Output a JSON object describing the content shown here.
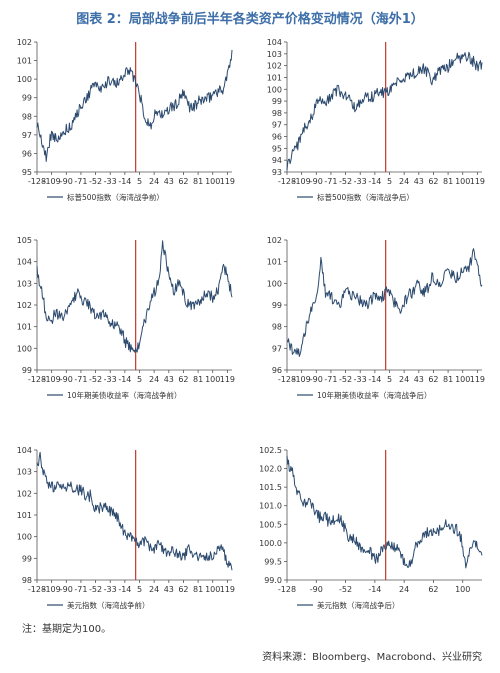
{
  "title": "图表 2：局部战争前后半年各类资产价格变动情况（海外1）",
  "note": "注：基期定为100。",
  "source": "资料来源：Bloomberg、Macrobond、兴业研究",
  "colors": {
    "series": "#2c4a6e",
    "event_line": "#c0392b",
    "title": "#3d6ea8"
  },
  "chart_data": [
    {
      "type": "line",
      "series": [
        {
          "name": "标普500指数（海湾战争前）"
        }
      ],
      "x_ticks": [
        "-128",
        "-109",
        "-90",
        "-71",
        "-52",
        "-33",
        "-14",
        "5",
        "24",
        "43",
        "62",
        "81",
        "100",
        "119"
      ],
      "x_range": [
        -128,
        125
      ],
      "ylim": [
        95,
        102
      ],
      "y_ticks": [
        95,
        96,
        97,
        98,
        99,
        100,
        101,
        102
      ],
      "event_x": 0,
      "anchors": [
        [
          -128,
          97.6
        ],
        [
          -122,
          96.8
        ],
        [
          -116,
          95.7
        ],
        [
          -110,
          96.9
        ],
        [
          -100,
          96.9
        ],
        [
          -90,
          97.2
        ],
        [
          -80,
          97.7
        ],
        [
          -70,
          98.6
        ],
        [
          -60,
          99.3
        ],
        [
          -50,
          99.6
        ],
        [
          -40,
          99.7
        ],
        [
          -30,
          99.9
        ],
        [
          -20,
          99.8
        ],
        [
          -12,
          100.5
        ],
        [
          -6,
          100.4
        ],
        [
          0,
          99.8
        ],
        [
          6,
          98.9
        ],
        [
          12,
          97.9
        ],
        [
          20,
          97.6
        ],
        [
          30,
          98.3
        ],
        [
          40,
          98.1
        ],
        [
          50,
          98.6
        ],
        [
          60,
          99.1
        ],
        [
          70,
          98.6
        ],
        [
          80,
          98.6
        ],
        [
          90,
          99.0
        ],
        [
          100,
          99.1
        ],
        [
          108,
          99.4
        ],
        [
          114,
          99.6
        ],
        [
          120,
          100.3
        ],
        [
          125,
          101.2
        ]
      ]
    },
    {
      "type": "line",
      "series": [
        {
          "name": "标普500指数（海湾战争后）"
        }
      ],
      "x_ticks": [
        "-128",
        "-109",
        "-90",
        "-71",
        "-52",
        "-33",
        "-14",
        "5",
        "24",
        "43",
        "62",
        "81",
        "100",
        "119"
      ],
      "x_range": [
        -128,
        125
      ],
      "ylim": [
        93,
        104
      ],
      "y_ticks": [
        93,
        94,
        95,
        96,
        97,
        98,
        99,
        100,
        101,
        102,
        103,
        104
      ],
      "event_x": 0,
      "anchors": [
        [
          -128,
          93.3
        ],
        [
          -120,
          94.6
        ],
        [
          -110,
          95.9
        ],
        [
          -100,
          97.3
        ],
        [
          -90,
          98.6
        ],
        [
          -80,
          98.9
        ],
        [
          -70,
          99.4
        ],
        [
          -60,
          100.0
        ],
        [
          -50,
          99.3
        ],
        [
          -40,
          98.6
        ],
        [
          -30,
          98.9
        ],
        [
          -20,
          99.5
        ],
        [
          -10,
          99.6
        ],
        [
          0,
          99.8
        ],
        [
          10,
          100.3
        ],
        [
          20,
          100.6
        ],
        [
          30,
          101.1
        ],
        [
          40,
          101.6
        ],
        [
          50,
          101.6
        ],
        [
          60,
          100.9
        ],
        [
          70,
          101.3
        ],
        [
          80,
          102.0
        ],
        [
          90,
          102.5
        ],
        [
          100,
          103.0
        ],
        [
          108,
          102.6
        ],
        [
          115,
          102.3
        ],
        [
          125,
          102.0
        ]
      ]
    },
    {
      "type": "line",
      "series": [
        {
          "name": "10年期美债收益率（海湾战争前）"
        }
      ],
      "x_ticks": [
        "-128",
        "-109",
        "-90",
        "-71",
        "-52",
        "-33",
        "-14",
        "5",
        "24",
        "43",
        "62",
        "81",
        "100",
        "119"
      ],
      "x_range": [
        -128,
        125
      ],
      "ylim": [
        99,
        105
      ],
      "y_ticks": [
        99,
        100,
        101,
        102,
        103,
        104,
        105
      ],
      "event_x": 0,
      "anchors": [
        [
          -128,
          103.8
        ],
        [
          -122,
          102.6
        ],
        [
          -115,
          101.2
        ],
        [
          -105,
          101.6
        ],
        [
          -95,
          101.4
        ],
        [
          -85,
          101.9
        ],
        [
          -75,
          102.6
        ],
        [
          -65,
          102.2
        ],
        [
          -55,
          101.6
        ],
        [
          -45,
          101.5
        ],
        [
          -35,
          101.3
        ],
        [
          -25,
          101.1
        ],
        [
          -15,
          100.5
        ],
        [
          -8,
          100.1
        ],
        [
          0,
          99.7
        ],
        [
          8,
          100.8
        ],
        [
          15,
          101.7
        ],
        [
          22,
          102.4
        ],
        [
          30,
          103.2
        ],
        [
          35,
          104.7
        ],
        [
          42,
          103.6
        ],
        [
          50,
          102.7
        ],
        [
          58,
          102.9
        ],
        [
          66,
          102.2
        ],
        [
          74,
          101.8
        ],
        [
          82,
          102.2
        ],
        [
          90,
          102.6
        ],
        [
          100,
          102.3
        ],
        [
          108,
          102.9
        ],
        [
          115,
          103.7
        ],
        [
          120,
          103.0
        ],
        [
          125,
          102.6
        ]
      ]
    },
    {
      "type": "line",
      "series": [
        {
          "name": "10年期美债收益率（海湾战争后）"
        }
      ],
      "x_ticks": [
        "-128",
        "-109",
        "-90",
        "-71",
        "-52",
        "-33",
        "-14",
        "5",
        "24",
        "43",
        "62",
        "81",
        "100",
        "119"
      ],
      "x_range": [
        -128,
        125
      ],
      "ylim": [
        96,
        102
      ],
      "y_ticks": [
        96,
        97,
        98,
        99,
        100,
        101,
        102
      ],
      "event_x": 0,
      "anchors": [
        [
          -128,
          97.5
        ],
        [
          -120,
          97.0
        ],
        [
          -112,
          96.6
        ],
        [
          -105,
          97.8
        ],
        [
          -98,
          98.8
        ],
        [
          -90,
          99.1
        ],
        [
          -84,
          101.3
        ],
        [
          -78,
          99.6
        ],
        [
          -70,
          99.3
        ],
        [
          -60,
          99.0
        ],
        [
          -50,
          99.6
        ],
        [
          -40,
          99.4
        ],
        [
          -30,
          99.0
        ],
        [
          -20,
          99.2
        ],
        [
          -10,
          99.3
        ],
        [
          0,
          99.6
        ],
        [
          8,
          99.3
        ],
        [
          15,
          99.0
        ],
        [
          22,
          98.8
        ],
        [
          30,
          99.5
        ],
        [
          40,
          99.9
        ],
        [
          50,
          99.6
        ],
        [
          60,
          100.2
        ],
        [
          70,
          100.0
        ],
        [
          80,
          100.5
        ],
        [
          90,
          100.3
        ],
        [
          100,
          100.6
        ],
        [
          108,
          100.8
        ],
        [
          114,
          101.5
        ],
        [
          120,
          100.5
        ],
        [
          125,
          99.8
        ]
      ]
    },
    {
      "type": "line",
      "series": [
        {
          "name": "美元指数（海湾战争前）"
        }
      ],
      "x_ticks": [
        "-128",
        "-109",
        "-90",
        "-71",
        "-52",
        "-33",
        "-14",
        "5",
        "24",
        "43",
        "62",
        "81",
        "100",
        "119"
      ],
      "x_range": [
        -128,
        125
      ],
      "ylim": [
        98,
        104
      ],
      "y_ticks": [
        98,
        99,
        100,
        101,
        102,
        103,
        104
      ],
      "event_x": 0,
      "anchors": [
        [
          -128,
          103.3
        ],
        [
          -124,
          103.6
        ],
        [
          -118,
          102.8
        ],
        [
          -110,
          102.2
        ],
        [
          -100,
          102.3
        ],
        [
          -90,
          102.2
        ],
        [
          -80,
          102.3
        ],
        [
          -72,
          102.2
        ],
        [
          -65,
          101.8
        ],
        [
          -58,
          102.0
        ],
        [
          -52,
          101.3
        ],
        [
          -45,
          101.2
        ],
        [
          -38,
          101.5
        ],
        [
          -30,
          101.0
        ],
        [
          -22,
          100.9
        ],
        [
          -15,
          100.2
        ],
        [
          -8,
          99.9
        ],
        [
          0,
          99.8
        ],
        [
          8,
          99.7
        ],
        [
          15,
          99.6
        ],
        [
          22,
          99.5
        ],
        [
          30,
          99.6
        ],
        [
          40,
          99.4
        ],
        [
          50,
          99.2
        ],
        [
          60,
          99.1
        ],
        [
          70,
          99.3
        ],
        [
          80,
          99.1
        ],
        [
          90,
          98.9
        ],
        [
          100,
          99.2
        ],
        [
          108,
          99.5
        ],
        [
          114,
          99.4
        ],
        [
          120,
          98.8
        ],
        [
          125,
          98.5
        ]
      ]
    },
    {
      "type": "line",
      "series": [
        {
          "name": "美元指数（海湾战争后）"
        }
      ],
      "x_ticks": [
        "-128",
        "-90",
        "-52",
        "-14",
        "24",
        "62",
        "100"
      ],
      "x_range": [
        -128,
        125
      ],
      "ylim": [
        99.0,
        102.5
      ],
      "y_ticks": [
        99.0,
        99.5,
        100.0,
        100.5,
        101.0,
        101.5,
        102.0,
        102.5
      ],
      "event_x": 0,
      "anchors": [
        [
          -128,
          102.3
        ],
        [
          -122,
          101.9
        ],
        [
          -115,
          101.4
        ],
        [
          -105,
          101.1
        ],
        [
          -95,
          101.0
        ],
        [
          -85,
          100.7
        ],
        [
          -75,
          100.6
        ],
        [
          -65,
          100.7
        ],
        [
          -55,
          100.5
        ],
        [
          -45,
          100.1
        ],
        [
          -35,
          99.9
        ],
        [
          -25,
          99.8
        ],
        [
          -15,
          99.6
        ],
        [
          -8,
          99.7
        ],
        [
          0,
          99.9
        ],
        [
          8,
          100.0
        ],
        [
          15,
          99.8
        ],
        [
          22,
          99.6
        ],
        [
          28,
          99.3
        ],
        [
          35,
          99.6
        ],
        [
          42,
          100.0
        ],
        [
          50,
          100.2
        ],
        [
          60,
          100.3
        ],
        [
          70,
          100.4
        ],
        [
          80,
          100.5
        ],
        [
          90,
          100.4
        ],
        [
          98,
          100.1
        ],
        [
          104,
          99.4
        ],
        [
          110,
          99.8
        ],
        [
          115,
          100.1
        ],
        [
          120,
          99.8
        ],
        [
          125,
          99.7
        ]
      ]
    }
  ]
}
